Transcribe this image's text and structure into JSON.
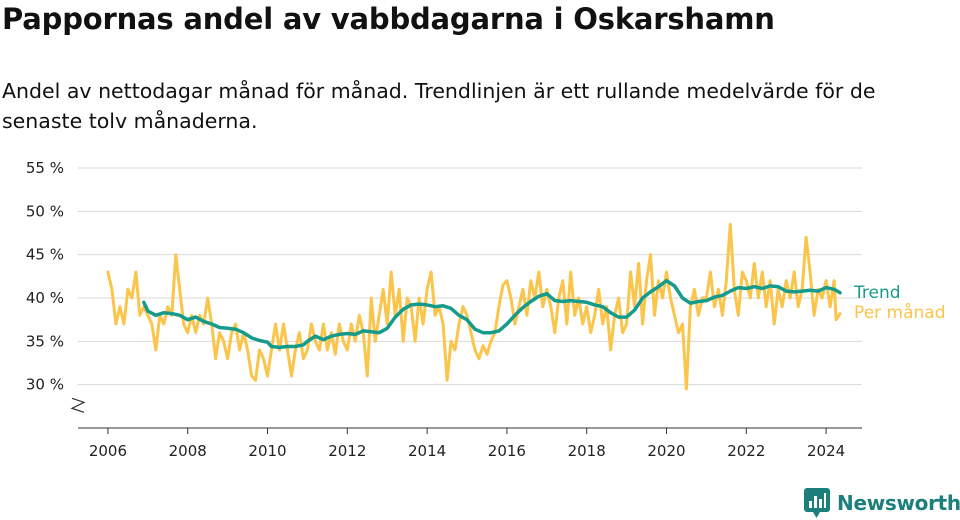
{
  "header": {
    "title": "Pappornas andel av vabbdagarna i Oskarshamn",
    "subtitle": "Andel av nettodagar månad för månad. Trendlinjen är ett rullande medelvärde för de senaste tolv månaderna."
  },
  "brand": {
    "name": "Newsworthy",
    "icon": "newsworthy-logo-icon"
  },
  "chart_data": {
    "type": "line",
    "title": "Pappornas andel av vabbdagarna i Oskarshamn",
    "subtitle": "Andel av nettodagar månad för månad. Trendlinjen är ett rullande medelvärde för de senaste tolv månaderna.",
    "xlabel": "",
    "ylabel": "",
    "y_unit": "%",
    "ylim": [
      25,
      55
    ],
    "y_axis_break": true,
    "y_ticks": [
      30,
      35,
      40,
      45,
      50,
      55
    ],
    "y_tick_labels": [
      "30 %",
      "35 %",
      "40 %",
      "45 %",
      "50 %",
      "55 %"
    ],
    "xlim": [
      2005.25,
      2024.9
    ],
    "x_ticks": [
      2006,
      2008,
      2010,
      2012,
      2014,
      2016,
      2018,
      2020,
      2022,
      2024
    ],
    "x_tick_labels": [
      "2006",
      "2008",
      "2010",
      "2012",
      "2014",
      "2016",
      "2018",
      "2020",
      "2022",
      "2024"
    ],
    "grid": "horizontal",
    "legend": "right, at line ends",
    "series": [
      {
        "name": "Per månad",
        "color": "#fbc44a",
        "points": [
          [
            2006.0,
            43
          ],
          [
            2006.1,
            41
          ],
          [
            2006.2,
            37
          ],
          [
            2006.3,
            39
          ],
          [
            2006.4,
            37
          ],
          [
            2006.5,
            41
          ],
          [
            2006.6,
            40
          ],
          [
            2006.7,
            43
          ],
          [
            2006.8,
            38
          ],
          [
            2006.9,
            39
          ],
          [
            2007.0,
            38
          ],
          [
            2007.1,
            37
          ],
          [
            2007.2,
            34
          ],
          [
            2007.3,
            38
          ],
          [
            2007.4,
            37
          ],
          [
            2007.5,
            39
          ],
          [
            2007.6,
            38
          ],
          [
            2007.7,
            45
          ],
          [
            2007.8,
            41
          ],
          [
            2007.9,
            37
          ],
          [
            2008.0,
            36
          ],
          [
            2008.1,
            38
          ],
          [
            2008.2,
            36
          ],
          [
            2008.3,
            38
          ],
          [
            2008.4,
            37
          ],
          [
            2008.5,
            40
          ],
          [
            2008.6,
            37
          ],
          [
            2008.7,
            33
          ],
          [
            2008.8,
            36
          ],
          [
            2008.9,
            35
          ],
          [
            2009.0,
            33
          ],
          [
            2009.1,
            36
          ],
          [
            2009.2,
            37
          ],
          [
            2009.3,
            34
          ],
          [
            2009.4,
            36
          ],
          [
            2009.5,
            34
          ],
          [
            2009.6,
            31
          ],
          [
            2009.7,
            30.5
          ],
          [
            2009.8,
            34
          ],
          [
            2009.9,
            33
          ],
          [
            2010.0,
            31
          ],
          [
            2010.1,
            34
          ],
          [
            2010.2,
            37
          ],
          [
            2010.3,
            34
          ],
          [
            2010.4,
            37
          ],
          [
            2010.5,
            34
          ],
          [
            2010.6,
            31
          ],
          [
            2010.7,
            34
          ],
          [
            2010.8,
            36
          ],
          [
            2010.9,
            33
          ],
          [
            2011.0,
            34
          ],
          [
            2011.1,
            37
          ],
          [
            2011.2,
            35
          ],
          [
            2011.3,
            34
          ],
          [
            2011.4,
            37
          ],
          [
            2011.5,
            34
          ],
          [
            2011.6,
            36
          ],
          [
            2011.7,
            33.5
          ],
          [
            2011.8,
            37
          ],
          [
            2011.9,
            35
          ],
          [
            2012.0,
            34
          ],
          [
            2012.1,
            37
          ],
          [
            2012.2,
            35
          ],
          [
            2012.3,
            38
          ],
          [
            2012.4,
            36
          ],
          [
            2012.5,
            31
          ],
          [
            2012.6,
            40
          ],
          [
            2012.7,
            35
          ],
          [
            2012.8,
            38
          ],
          [
            2012.9,
            41
          ],
          [
            2013.0,
            37
          ],
          [
            2013.1,
            43
          ],
          [
            2013.2,
            38
          ],
          [
            2013.3,
            41
          ],
          [
            2013.4,
            35
          ],
          [
            2013.5,
            40
          ],
          [
            2013.6,
            39
          ],
          [
            2013.7,
            35
          ],
          [
            2013.8,
            40
          ],
          [
            2013.9,
            37
          ],
          [
            2014.0,
            41
          ],
          [
            2014.1,
            43
          ],
          [
            2014.2,
            38
          ],
          [
            2014.3,
            39
          ],
          [
            2014.4,
            37
          ],
          [
            2014.5,
            30.5
          ],
          [
            2014.6,
            35
          ],
          [
            2014.7,
            34
          ],
          [
            2014.8,
            37
          ],
          [
            2014.9,
            39
          ],
          [
            2015.0,
            38
          ],
          [
            2015.1,
            36
          ],
          [
            2015.2,
            34
          ],
          [
            2015.3,
            33
          ],
          [
            2015.4,
            34.5
          ],
          [
            2015.5,
            33.5
          ],
          [
            2015.6,
            35
          ],
          [
            2015.7,
            36
          ],
          [
            2015.8,
            39
          ],
          [
            2015.9,
            41.5
          ],
          [
            2016.0,
            42
          ],
          [
            2016.1,
            40
          ],
          [
            2016.2,
            37
          ],
          [
            2016.3,
            39
          ],
          [
            2016.4,
            41
          ],
          [
            2016.5,
            38
          ],
          [
            2016.6,
            42
          ],
          [
            2016.7,
            40
          ],
          [
            2016.8,
            43
          ],
          [
            2016.9,
            39
          ],
          [
            2017.0,
            41
          ],
          [
            2017.1,
            39
          ],
          [
            2017.2,
            36
          ],
          [
            2017.3,
            40
          ],
          [
            2017.4,
            42
          ],
          [
            2017.5,
            37
          ],
          [
            2017.6,
            43
          ],
          [
            2017.7,
            38
          ],
          [
            2017.8,
            40
          ],
          [
            2017.9,
            37
          ],
          [
            2018.0,
            39
          ],
          [
            2018.1,
            36
          ],
          [
            2018.2,
            38
          ],
          [
            2018.3,
            41
          ],
          [
            2018.4,
            37
          ],
          [
            2018.5,
            39
          ],
          [
            2018.6,
            34
          ],
          [
            2018.7,
            38
          ],
          [
            2018.8,
            40
          ],
          [
            2018.9,
            36
          ],
          [
            2019.0,
            37
          ],
          [
            2019.1,
            43
          ],
          [
            2019.2,
            39
          ],
          [
            2019.3,
            44
          ],
          [
            2019.4,
            37
          ],
          [
            2019.5,
            42
          ],
          [
            2019.6,
            45
          ],
          [
            2019.7,
            38
          ],
          [
            2019.8,
            42
          ],
          [
            2019.9,
            40
          ],
          [
            2020.0,
            43
          ],
          [
            2020.1,
            40
          ],
          [
            2020.2,
            38
          ],
          [
            2020.3,
            36
          ],
          [
            2020.4,
            37
          ],
          [
            2020.5,
            29.5
          ],
          [
            2020.6,
            39
          ],
          [
            2020.7,
            41
          ],
          [
            2020.8,
            38
          ],
          [
            2020.9,
            40
          ],
          [
            2021.0,
            40
          ],
          [
            2021.1,
            43
          ],
          [
            2021.2,
            39
          ],
          [
            2021.3,
            41
          ],
          [
            2021.4,
            38
          ],
          [
            2021.5,
            42
          ],
          [
            2021.6,
            48.5
          ],
          [
            2021.7,
            41
          ],
          [
            2021.8,
            38
          ],
          [
            2021.9,
            43
          ],
          [
            2022.0,
            42
          ],
          [
            2022.1,
            40
          ],
          [
            2022.2,
            44
          ],
          [
            2022.3,
            40
          ],
          [
            2022.4,
            43
          ],
          [
            2022.5,
            39
          ],
          [
            2022.6,
            42
          ],
          [
            2022.7,
            37
          ],
          [
            2022.8,
            41
          ],
          [
            2022.9,
            39
          ],
          [
            2023.0,
            42
          ],
          [
            2023.1,
            40
          ],
          [
            2023.2,
            43
          ],
          [
            2023.3,
            39
          ],
          [
            2023.4,
            41
          ],
          [
            2023.5,
            47
          ],
          [
            2023.6,
            43
          ],
          [
            2023.7,
            38
          ],
          [
            2023.8,
            41
          ],
          [
            2023.9,
            40
          ],
          [
            2024.0,
            42
          ],
          [
            2024.1,
            39
          ],
          [
            2024.2,
            42
          ],
          [
            2024.25,
            37.5
          ],
          [
            2024.35,
            38.2
          ]
        ]
      },
      {
        "name": "Trend",
        "color": "#149b8c",
        "points": [
          [
            2006.9,
            39.5
          ],
          [
            2007.0,
            38.5
          ],
          [
            2007.2,
            38.0
          ],
          [
            2007.4,
            38.3
          ],
          [
            2007.6,
            38.2
          ],
          [
            2007.8,
            38.0
          ],
          [
            2008.0,
            37.5
          ],
          [
            2008.2,
            37.8
          ],
          [
            2008.4,
            37.3
          ],
          [
            2008.6,
            37.0
          ],
          [
            2008.8,
            36.6
          ],
          [
            2009.0,
            36.5
          ],
          [
            2009.2,
            36.4
          ],
          [
            2009.4,
            36.0
          ],
          [
            2009.6,
            35.4
          ],
          [
            2009.8,
            35.1
          ],
          [
            2010.0,
            34.9
          ],
          [
            2010.1,
            34.4
          ],
          [
            2010.3,
            34.3
          ],
          [
            2010.5,
            34.4
          ],
          [
            2010.7,
            34.4
          ],
          [
            2010.9,
            34.6
          ],
          [
            2011.0,
            35.0
          ],
          [
            2011.2,
            35.6
          ],
          [
            2011.4,
            35.2
          ],
          [
            2011.6,
            35.6
          ],
          [
            2011.8,
            35.8
          ],
          [
            2012.0,
            35.9
          ],
          [
            2012.2,
            35.8
          ],
          [
            2012.4,
            36.2
          ],
          [
            2012.6,
            36.1
          ],
          [
            2012.8,
            36.0
          ],
          [
            2013.0,
            36.5
          ],
          [
            2013.2,
            37.8
          ],
          [
            2013.4,
            38.7
          ],
          [
            2013.6,
            39.2
          ],
          [
            2013.8,
            39.3
          ],
          [
            2014.0,
            39.2
          ],
          [
            2014.2,
            39.0
          ],
          [
            2014.4,
            39.1
          ],
          [
            2014.6,
            38.8
          ],
          [
            2014.8,
            38.0
          ],
          [
            2015.0,
            37.5
          ],
          [
            2015.2,
            36.4
          ],
          [
            2015.4,
            36.0
          ],
          [
            2015.6,
            36.0
          ],
          [
            2015.8,
            36.2
          ],
          [
            2016.0,
            37.0
          ],
          [
            2016.2,
            38.0
          ],
          [
            2016.4,
            38.9
          ],
          [
            2016.6,
            39.6
          ],
          [
            2016.8,
            40.2
          ],
          [
            2017.0,
            40.5
          ],
          [
            2017.2,
            39.7
          ],
          [
            2017.4,
            39.6
          ],
          [
            2017.6,
            39.7
          ],
          [
            2017.8,
            39.6
          ],
          [
            2018.0,
            39.5
          ],
          [
            2018.2,
            39.2
          ],
          [
            2018.4,
            39.0
          ],
          [
            2018.6,
            38.3
          ],
          [
            2018.8,
            37.8
          ],
          [
            2019.0,
            37.8
          ],
          [
            2019.2,
            38.6
          ],
          [
            2019.4,
            40.0
          ],
          [
            2019.6,
            40.7
          ],
          [
            2019.8,
            41.3
          ],
          [
            2020.0,
            42.0
          ],
          [
            2020.2,
            41.4
          ],
          [
            2020.4,
            40.0
          ],
          [
            2020.6,
            39.4
          ],
          [
            2020.8,
            39.6
          ],
          [
            2021.0,
            39.7
          ],
          [
            2021.2,
            40.1
          ],
          [
            2021.4,
            40.3
          ],
          [
            2021.6,
            40.8
          ],
          [
            2021.8,
            41.2
          ],
          [
            2022.0,
            41.1
          ],
          [
            2022.2,
            41.3
          ],
          [
            2022.4,
            41.1
          ],
          [
            2022.6,
            41.4
          ],
          [
            2022.8,
            41.3
          ],
          [
            2023.0,
            40.8
          ],
          [
            2023.2,
            40.7
          ],
          [
            2023.4,
            40.8
          ],
          [
            2023.6,
            40.9
          ],
          [
            2023.8,
            40.8
          ],
          [
            2024.0,
            41.2
          ],
          [
            2024.2,
            41.0
          ],
          [
            2024.35,
            40.6
          ]
        ]
      }
    ]
  }
}
